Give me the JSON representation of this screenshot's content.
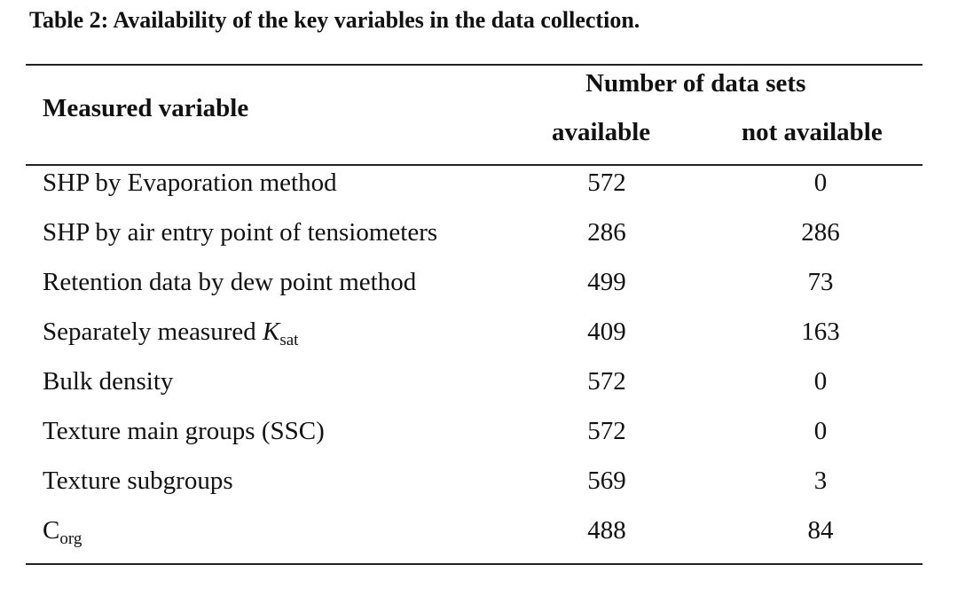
{
  "caption": "Table 2: Availability of the key variables in the data collection.",
  "headers": {
    "variable": "Measured variable",
    "group": "Number of data sets",
    "available": "available",
    "not_available": "not available"
  },
  "rows": [
    {
      "name": "SHP by Evaporation method",
      "available": "572",
      "not_available": "0"
    },
    {
      "name": "SHP by air entry point of tensiometers",
      "available": "286",
      "not_available": "286"
    },
    {
      "name": "Retention data by dew point method",
      "available": "499",
      "not_available": "73"
    },
    {
      "name_prefix": "Separately measured ",
      "name_symbol": "K",
      "name_subscript": "sat",
      "available": "409",
      "not_available": "163"
    },
    {
      "name": "Bulk density",
      "available": "572",
      "not_available": "0"
    },
    {
      "name": "Texture main groups (SSC)",
      "available": "572",
      "not_available": "0"
    },
    {
      "name": "Texture subgroups",
      "available": "569",
      "not_available": "3"
    },
    {
      "name_symbol": "C",
      "name_subscript": "org",
      "available": "488",
      "not_available": "84"
    }
  ]
}
